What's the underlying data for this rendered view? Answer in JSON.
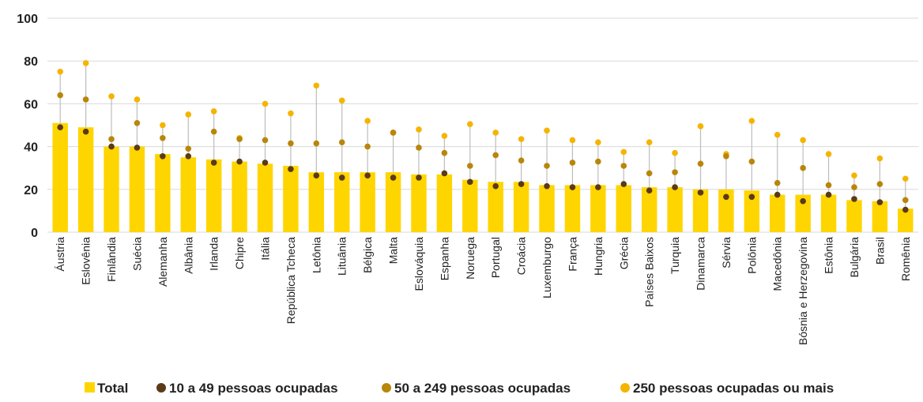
{
  "chart_data": {
    "type": "bar",
    "ylim": [
      0,
      100
    ],
    "yticks": [
      0,
      20,
      40,
      60,
      80,
      100
    ],
    "grid": true,
    "legend_placement": "bottom",
    "categories": [
      "Áustria",
      "Eslovênia",
      "Finlândia",
      "Suécia",
      "Alemanha",
      "Albânia",
      "Irlanda",
      "Chipre",
      "Itália",
      "República Tcheca",
      "Letônia",
      "Lituânia",
      "Bélgica",
      "Malta",
      "Eslováquia",
      "Espanha",
      "Noruega",
      "Portugal",
      "Croácia",
      "Luxemburgo",
      "França",
      "Hungria",
      "Grécia",
      "Países Baixos",
      "Turquia",
      "Dinamarca",
      "Sérvia",
      "Polônia",
      "Macedônia",
      "Bósnia e Herzegovina",
      "Estônia",
      "Bulgária",
      "Brasil",
      "Romênia"
    ],
    "series": [
      {
        "name": "Total",
        "kind": "bar",
        "color": "#FFD500",
        "values": [
          51,
          49,
          40,
          40,
          36.5,
          35,
          34,
          33,
          32,
          31,
          28,
          28,
          28,
          28,
          27,
          27,
          24.5,
          23.5,
          23.5,
          22,
          22,
          22,
          22,
          21,
          21,
          20,
          20,
          19.5,
          17.5,
          17.5,
          17.5,
          15,
          14.5,
          11
        ]
      },
      {
        "name": "10 a 49 pessoas ocupadas",
        "kind": "dot",
        "color": "#5B3A17",
        "values": [
          49,
          47,
          40,
          39.5,
          35.5,
          35.5,
          32.5,
          33,
          32.5,
          29.5,
          26.5,
          25.5,
          26.5,
          25.5,
          25.5,
          27.5,
          23.5,
          21.5,
          22.5,
          21.5,
          21,
          21,
          22.5,
          19.5,
          21,
          18.5,
          16.5,
          16.5,
          17.5,
          14.5,
          17.5,
          15.5,
          14,
          10.5
        ]
      },
      {
        "name": "50 a 249 pessoas ocupadas",
        "kind": "dot",
        "color": "#B8860B",
        "values": [
          64,
          62,
          43.5,
          51,
          44,
          39,
          47,
          43.5,
          43,
          41.5,
          41.5,
          42,
          40,
          46.5,
          39.5,
          37,
          31,
          36,
          33.5,
          31,
          32.5,
          33,
          31,
          27.5,
          28,
          32,
          35.5,
          33,
          23,
          30,
          22,
          21,
          22.5,
          15
        ]
      },
      {
        "name": "250 pessoas ocupadas ou mais",
        "kind": "dot",
        "color": "#F5B400",
        "values": [
          75,
          79,
          63.5,
          62,
          50,
          55,
          56.5,
          44,
          60,
          55.5,
          68.5,
          61.5,
          52,
          46.5,
          48,
          45,
          50.5,
          46.5,
          43.5,
          47.5,
          43,
          42,
          37.5,
          42,
          37,
          49.5,
          36.5,
          52,
          45.5,
          43,
          36.5,
          26.5,
          34.5,
          25
        ]
      }
    ]
  }
}
